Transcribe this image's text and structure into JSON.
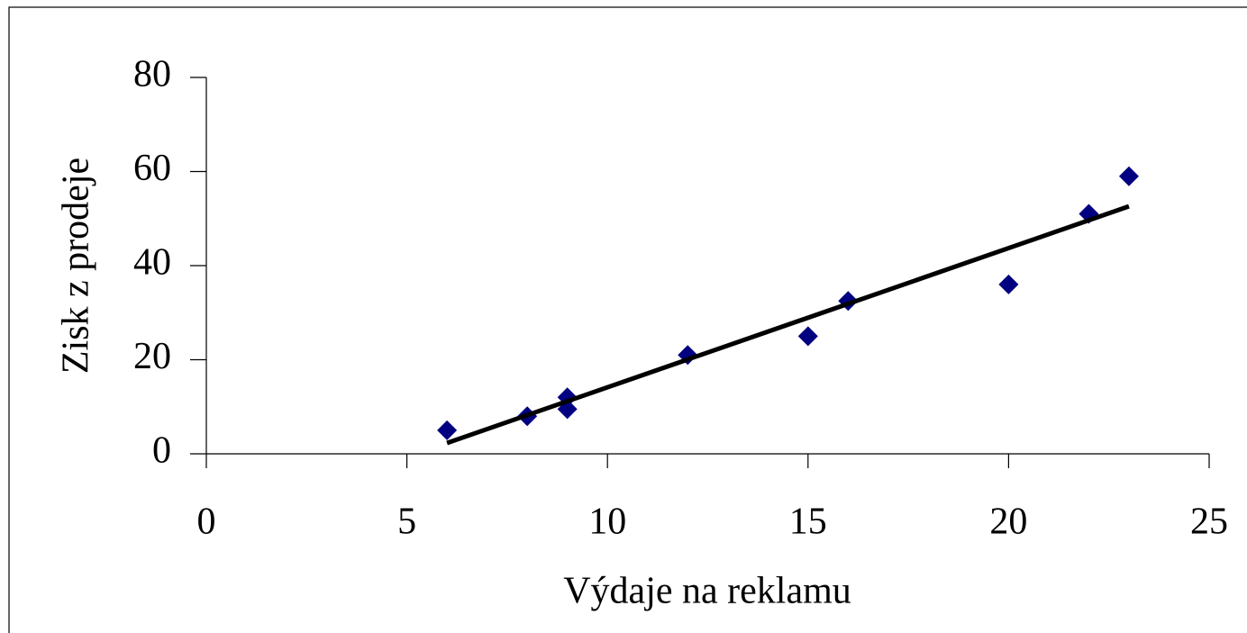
{
  "chart_data": {
    "type": "scatter",
    "xlabel": "Výdaje na reklamu",
    "ylabel": "Zisk z prodeje",
    "series": [
      {
        "name": null,
        "color": "#000080",
        "x": [
          6,
          8,
          9,
          9,
          12,
          15,
          16,
          20,
          22,
          23
        ],
        "values": [
          5,
          8,
          12,
          9.5,
          21,
          25,
          32.5,
          36,
          51,
          59
        ]
      }
    ],
    "trendline": {
      "color": "#000000",
      "x": [
        6,
        23
      ],
      "values": [
        2.3,
        52.6
      ]
    },
    "xlim": [
      0,
      25
    ],
    "xticks": [
      0,
      5,
      10,
      15,
      20,
      25
    ],
    "ylim": [
      0,
      80
    ],
    "yticks": [
      0,
      20,
      40,
      60,
      80
    ],
    "grid": false
  }
}
